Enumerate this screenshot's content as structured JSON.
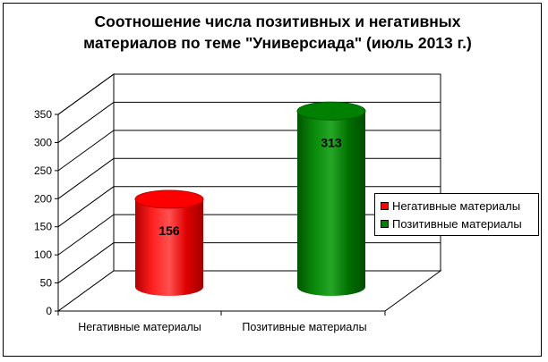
{
  "chart_data": {
    "type": "bar",
    "title": "Соотношение числа позитивных и негативных материалов по теме \"Универсиада\" (июль 2013 г.)",
    "title_lines": [
      "Соотношение числа позитивных и негативных",
      "материалов по теме \"Универсиада\" (июль 2013 г.)"
    ],
    "categories": [
      "Негативные материалы",
      "Позитивные материалы"
    ],
    "values": [
      156,
      313
    ],
    "data_labels": [
      "156",
      "313"
    ],
    "colors": [
      "#ff0000",
      "#008000"
    ],
    "ylim": [
      0,
      350
    ],
    "yticks": [
      "0",
      "50",
      "100",
      "150",
      "200",
      "250",
      "300",
      "350"
    ],
    "xlabel": "",
    "ylabel": "",
    "grid": true,
    "three_d": true,
    "bar_shape": "cylinder",
    "legend": {
      "position": "right",
      "entries": [
        "Негативные материалы",
        "Позитивные материалы"
      ]
    }
  }
}
